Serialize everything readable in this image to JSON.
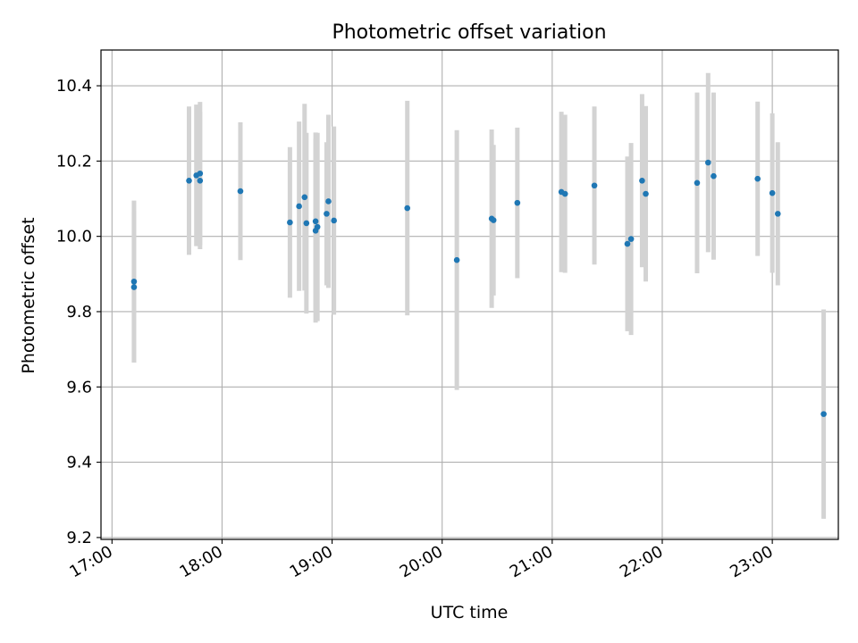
{
  "chart_data": {
    "type": "scatter",
    "title": "Photometric offset variation",
    "xlabel": "UTC time",
    "ylabel": "Photometric offset",
    "xlim": [
      "16:54",
      "23:36"
    ],
    "ylim": [
      9.195,
      10.495
    ],
    "x_ticks": [
      "17:00",
      "18:00",
      "19:00",
      "20:00",
      "21:00",
      "22:00",
      "23:00"
    ],
    "y_ticks": [
      9.2,
      9.4,
      9.6,
      9.8,
      10.0,
      10.2,
      10.4
    ],
    "grid": true,
    "marker_color": "#1f77b4",
    "errorbar_color": "#d3d3d3",
    "points": [
      {
        "t": "17:12",
        "y": 9.865,
        "err": 0.2
      },
      {
        "t": "17:12",
        "y": 9.88,
        "err": 0.215
      },
      {
        "t": "17:42",
        "y": 10.148,
        "err": 0.197
      },
      {
        "t": "17:46",
        "y": 10.162,
        "err": 0.188
      },
      {
        "t": "17:48",
        "y": 10.167,
        "err": 0.19
      },
      {
        "t": "17:48",
        "y": 10.148,
        "err": 0.182
      },
      {
        "t": "18:10",
        "y": 10.12,
        "err": 0.183
      },
      {
        "t": "18:37",
        "y": 10.037,
        "err": 0.2
      },
      {
        "t": "18:42",
        "y": 10.08,
        "err": 0.225
      },
      {
        "t": "18:45",
        "y": 10.104,
        "err": 0.248
      },
      {
        "t": "18:46",
        "y": 10.035,
        "err": 0.24
      },
      {
        "t": "18:51",
        "y": 10.015,
        "err": 0.244
      },
      {
        "t": "18:51",
        "y": 10.04,
        "err": 0.236
      },
      {
        "t": "18:52",
        "y": 10.025,
        "err": 0.25
      },
      {
        "t": "18:57",
        "y": 10.06,
        "err": 0.19
      },
      {
        "t": "18:58",
        "y": 10.093,
        "err": 0.23
      },
      {
        "t": "19:01",
        "y": 10.042,
        "err": 0.25
      },
      {
        "t": "19:41",
        "y": 10.075,
        "err": 0.285
      },
      {
        "t": "20:08",
        "y": 9.937,
        "err": 0.345
      },
      {
        "t": "20:27",
        "y": 10.047,
        "err": 0.237
      },
      {
        "t": "20:28",
        "y": 10.043,
        "err": 0.2
      },
      {
        "t": "20:41",
        "y": 10.089,
        "err": 0.2
      },
      {
        "t": "21:05",
        "y": 10.118,
        "err": 0.213
      },
      {
        "t": "21:07",
        "y": 10.113,
        "err": 0.21
      },
      {
        "t": "21:23",
        "y": 10.135,
        "err": 0.21
      },
      {
        "t": "21:41",
        "y": 9.98,
        "err": 0.232
      },
      {
        "t": "21:43",
        "y": 9.993,
        "err": 0.255
      },
      {
        "t": "21:49",
        "y": 10.148,
        "err": 0.23
      },
      {
        "t": "21:51",
        "y": 10.113,
        "err": 0.233
      },
      {
        "t": "22:19",
        "y": 10.142,
        "err": 0.24
      },
      {
        "t": "22:25",
        "y": 10.196,
        "err": 0.238
      },
      {
        "t": "22:28",
        "y": 10.16,
        "err": 0.222
      },
      {
        "t": "22:52",
        "y": 10.153,
        "err": 0.205
      },
      {
        "t": "23:00",
        "y": 10.115,
        "err": 0.212
      },
      {
        "t": "23:03",
        "y": 10.06,
        "err": 0.19
      },
      {
        "t": "23:28",
        "y": 9.528,
        "err": 0.278
      }
    ]
  }
}
